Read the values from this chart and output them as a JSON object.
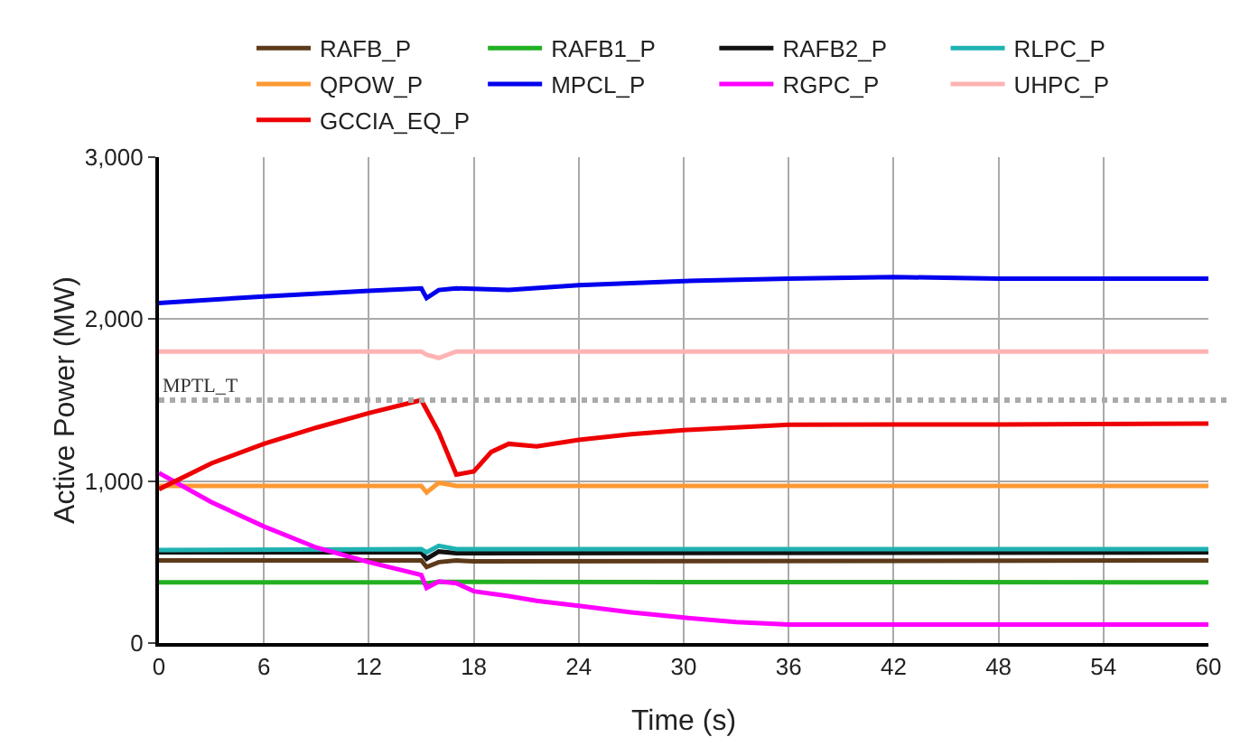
{
  "chart_data": {
    "type": "line",
    "xlabel": "Time (s)",
    "ylabel": "Active Power (MW)",
    "xlim": [
      0,
      60
    ],
    "ylim": [
      0,
      3000
    ],
    "xticks": [
      0,
      6,
      12,
      18,
      24,
      30,
      36,
      42,
      48,
      54,
      60
    ],
    "yticks": [
      0,
      {
        "value": 1000,
        "label": "1,000"
      },
      {
        "value": 2000,
        "label": "2,000"
      },
      {
        "value": 3000,
        "label": "3,000"
      }
    ],
    "grid": true,
    "legend": "top",
    "marker": "none",
    "line_style": "solid",
    "ref_lines": [
      {
        "axis": "y",
        "value": 1500,
        "label": "MPTL_T",
        "color": "#aaaaaa",
        "line_style": "dotted"
      }
    ],
    "series": [
      {
        "name": "RAFB_P",
        "color": "#5c3a1a",
        "x": [
          0,
          15,
          15.3,
          16,
          17,
          18,
          60
        ],
        "values": [
          510,
          510,
          470,
          500,
          510,
          505,
          510
        ]
      },
      {
        "name": "RAFB1_P",
        "color": "#22b022",
        "x": [
          0,
          15,
          15.3,
          16,
          60
        ],
        "values": [
          375,
          375,
          370,
          378,
          375
        ]
      },
      {
        "name": "RAFB2_P",
        "color": "#111111",
        "x": [
          0,
          15,
          15.3,
          16,
          17,
          60
        ],
        "values": [
          560,
          560,
          520,
          565,
          555,
          560
        ]
      },
      {
        "name": "RLPC_P",
        "color": "#20b2b2",
        "x": [
          0,
          15,
          15.3,
          16,
          17,
          60
        ],
        "values": [
          575,
          580,
          560,
          600,
          580,
          580
        ]
      },
      {
        "name": "QPOW_P",
        "color": "#ff9933",
        "x": [
          0,
          15,
          15.3,
          16,
          17,
          60
        ],
        "values": [
          970,
          970,
          930,
          990,
          970,
          970
        ]
      },
      {
        "name": "MPCL_P",
        "color": "#0000ee",
        "x": [
          0,
          6,
          12,
          15,
          15.3,
          16,
          17,
          20,
          24,
          30,
          36,
          42,
          48,
          60
        ],
        "values": [
          2100,
          2140,
          2175,
          2190,
          2130,
          2180,
          2190,
          2180,
          2210,
          2235,
          2250,
          2260,
          2250,
          2250
        ]
      },
      {
        "name": "RGPC_P",
        "color": "#ff00ff",
        "x": [
          0,
          3,
          6,
          9,
          12,
          15,
          15.3,
          16,
          17,
          18,
          20,
          21.6,
          24,
          27,
          30,
          33,
          36,
          60
        ],
        "values": [
          1050,
          870,
          720,
          590,
          500,
          420,
          340,
          380,
          370,
          320,
          290,
          261,
          230,
          190,
          157,
          130,
          115,
          115
        ]
      },
      {
        "name": "UHPC_P",
        "color": "#ffb3b3",
        "x": [
          0,
          15,
          15.3,
          16,
          17,
          60
        ],
        "values": [
          1800,
          1800,
          1780,
          1760,
          1800,
          1800
        ]
      },
      {
        "name": "GCCIA_EQ_P",
        "color": "#ee0000",
        "x": [
          0,
          3,
          6,
          9,
          12,
          15,
          16,
          17,
          18,
          19,
          20,
          21.6,
          24,
          27,
          30,
          36,
          42,
          48,
          60
        ],
        "values": [
          950,
          1110,
          1230,
          1330,
          1420,
          1500,
          1300,
          1040,
          1060,
          1180,
          1230,
          1215,
          1255,
          1290,
          1315,
          1348,
          1350,
          1350,
          1355
        ]
      }
    ]
  }
}
